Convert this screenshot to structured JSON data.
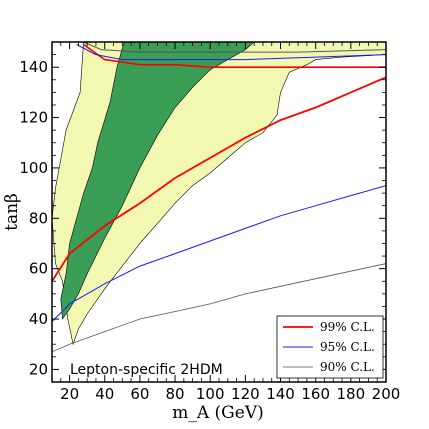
{
  "chart_data": {
    "type": "area",
    "xlabel": "m_A (GeV)",
    "ylabel": "tanβ",
    "xlim": [
      10,
      200
    ],
    "ylim": [
      15,
      150
    ],
    "x_ticks": [
      20,
      40,
      60,
      80,
      100,
      120,
      140,
      160,
      180,
      200
    ],
    "y_ticks": [
      20,
      40,
      60,
      80,
      100,
      120,
      140
    ],
    "annotation": "Lepton-specific 2HDM",
    "legend_position": "bottom-right",
    "regions": [
      {
        "fill": "#f2f7b1",
        "points": [
          [
            22,
            30
          ],
          [
            25,
            36
          ],
          [
            30,
            42
          ],
          [
            40,
            52
          ],
          [
            50,
            61
          ],
          [
            60,
            70
          ],
          [
            70,
            78
          ],
          [
            80,
            86
          ],
          [
            90,
            93
          ],
          [
            100,
            98
          ],
          [
            110,
            104
          ],
          [
            120,
            110
          ],
          [
            130,
            114
          ],
          [
            138,
            121
          ],
          [
            140,
            130
          ],
          [
            145,
            138
          ],
          [
            155,
            141
          ],
          [
            160,
            143
          ],
          [
            175,
            144
          ],
          [
            200,
            145
          ],
          [
            200,
            150
          ],
          [
            28,
            150
          ],
          [
            26,
            130
          ],
          [
            18,
            115
          ],
          [
            12,
            92
          ],
          [
            10,
            80
          ],
          [
            12,
            62
          ],
          [
            16,
            55
          ],
          [
            19,
            40
          ]
        ]
      },
      {
        "fill": "#3b9e57",
        "points": [
          [
            16,
            40
          ],
          [
            20,
            44
          ],
          [
            25,
            50
          ],
          [
            30,
            58
          ],
          [
            40,
            72
          ],
          [
            50,
            85
          ],
          [
            60,
            100
          ],
          [
            70,
            113
          ],
          [
            80,
            124
          ],
          [
            90,
            132
          ],
          [
            100,
            139
          ],
          [
            110,
            143
          ],
          [
            120,
            147
          ],
          [
            125,
            150
          ],
          [
            51,
            150
          ],
          [
            47,
            140
          ],
          [
            43,
            126
          ],
          [
            36,
            110
          ],
          [
            33,
            100
          ],
          [
            28,
            90
          ],
          [
            24,
            80
          ],
          [
            20,
            70
          ],
          [
            18,
            58
          ],
          [
            15,
            48
          ]
        ]
      }
    ],
    "series": [
      {
        "name": "99% C.L.",
        "color": "#ff0000",
        "x": [
          10,
          20,
          40,
          60,
          80,
          100,
          120,
          140,
          160,
          180,
          200
        ],
        "y": [
          55,
          66,
          77,
          86,
          96,
          104,
          112,
          119,
          124,
          130,
          136
        ]
      },
      {
        "name": "95% C.L.",
        "color": "#1a1aff",
        "x": [
          10,
          20,
          40,
          60,
          80,
          100,
          120,
          140,
          160,
          180,
          200
        ],
        "y": [
          39,
          46,
          54,
          61,
          66,
          71,
          76,
          81,
          85,
          89,
          93
        ]
      },
      {
        "name": "90% C.L.",
        "color": "#555555",
        "x": [
          10,
          20,
          40,
          60,
          80,
          100,
          120,
          140,
          160,
          180,
          200
        ],
        "y": [
          27,
          30,
          35,
          40,
          43,
          46,
          50,
          53,
          56,
          59,
          62
        ]
      }
    ],
    "top_contours": [
      {
        "color": "#ff0000",
        "x": [
          28,
          40,
          60,
          80,
          100,
          140,
          200
        ],
        "y": [
          149,
          143,
          141,
          141,
          140,
          140,
          140
        ]
      },
      {
        "color": "#1a1aff",
        "x": [
          24,
          35,
          50,
          80,
          120,
          160,
          200
        ],
        "y": [
          149,
          145,
          143,
          143,
          143,
          144,
          145
        ]
      },
      {
        "color": "#555555",
        "x": [
          28,
          38,
          60,
          100,
          150,
          200
        ],
        "y": [
          150,
          147,
          146,
          146,
          146,
          147
        ]
      }
    ]
  }
}
